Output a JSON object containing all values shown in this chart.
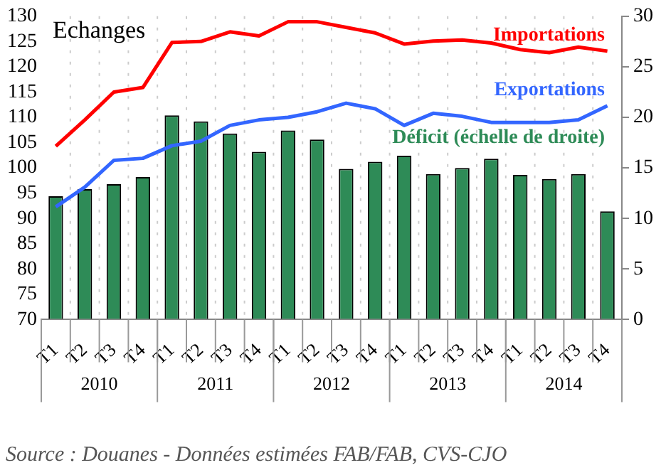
{
  "chart_data": {
    "type": "line",
    "title": "Echanges",
    "categories": [
      "T1",
      "T2",
      "T3",
      "T4",
      "T1",
      "T2",
      "T3",
      "T4",
      "T1",
      "T2",
      "T3",
      "T4",
      "T1",
      "T2",
      "T3",
      "T4",
      "T1",
      "T2",
      "T3",
      "T4"
    ],
    "series": [
      {
        "name": "Déficit (échelle de droite)",
        "type": "bar",
        "axis": "y2",
        "color": "#2e8b57",
        "values": [
          12.2,
          12.9,
          13.4,
          14.1,
          20.2,
          19.6,
          18.4,
          16.6,
          18.7,
          17.8,
          14.9,
          15.6,
          16.2,
          14.4,
          15.0,
          15.9,
          14.3,
          13.9,
          14.4,
          10.7
        ]
      },
      {
        "name": "Importations",
        "color": "#ff0000",
        "values": [
          104.3,
          109.5,
          115.0,
          115.9,
          124.8,
          125.0,
          126.9,
          126.1,
          128.9,
          128.9,
          127.8,
          126.7,
          124.5,
          125.1,
          125.3,
          124.7,
          123.4,
          122.8,
          123.9,
          123.1
        ]
      },
      {
        "name": "Exportations",
        "color": "#3366ff",
        "values": [
          92.3,
          96.2,
          101.5,
          101.9,
          104.4,
          105.3,
          108.4,
          109.5,
          110.0,
          111.1,
          112.8,
          111.7,
          108.4,
          110.8,
          110.2,
          109.0,
          109.0,
          109.0,
          109.5,
          112.3
        ]
      }
    ],
    "ylim": [
      70,
      130
    ],
    "yticks": [
      70,
      75,
      80,
      85,
      90,
      95,
      100,
      105,
      110,
      115,
      120,
      125,
      130
    ],
    "y2lim": [
      0,
      30
    ],
    "y2ticks": [
      0,
      5,
      10,
      15,
      20,
      25,
      30
    ],
    "grid": "x",
    "legend": false,
    "marker": "none",
    "annotations": [
      "2010",
      "2011",
      "2012",
      "2013",
      "2014",
      "Source : Douanes - Données estimées FAB/FAB, CVS-CJO"
    ]
  }
}
